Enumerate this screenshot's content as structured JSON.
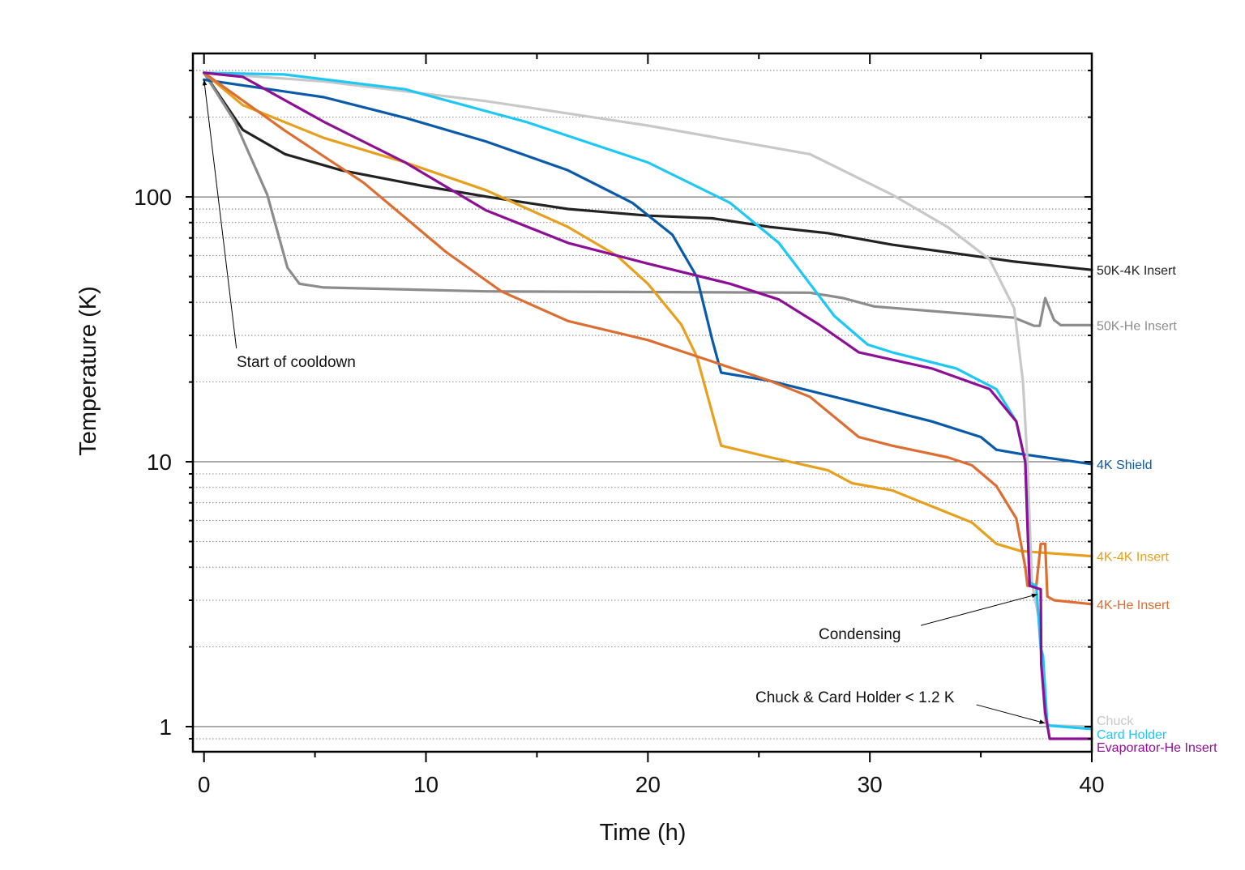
{
  "chart_data": {
    "type": "line",
    "title": "",
    "xlabel": "Time (h)",
    "ylabel": "Temperature (K)",
    "xlim": [
      -0.5,
      40
    ],
    "ylim": [
      0.804,
      348
    ],
    "yscale": "log",
    "grid": "horizontal major solid, minor dotted",
    "legend": "inline labels at right end of each line",
    "x_ticks": [
      0,
      10,
      20,
      30,
      40
    ],
    "x_tick_labels": [
      "0",
      "10",
      "20",
      "30",
      "40"
    ],
    "y_ticks": [
      1,
      10,
      100
    ],
    "y_tick_labels": [
      "1",
      "10",
      "100"
    ],
    "series": [
      {
        "name": "50K-4K Insert",
        "color": "#222222",
        "points": [
          [
            0,
            294
          ],
          [
            1.75,
            179
          ],
          [
            3.65,
            145
          ],
          [
            6.2,
            126
          ],
          [
            9.85,
            110
          ],
          [
            12.8,
            100
          ],
          [
            16.4,
            90
          ],
          [
            20,
            85
          ],
          [
            22.9,
            83
          ],
          [
            25.5,
            77
          ],
          [
            28.1,
            73
          ],
          [
            31,
            66
          ],
          [
            34.6,
            60
          ],
          [
            36.5,
            57
          ],
          [
            40,
            53
          ]
        ]
      },
      {
        "name": "50K-He Insert",
        "color": "#8c8c8c",
        "points": [
          [
            0,
            294
          ],
          [
            1.4,
            192
          ],
          [
            2.85,
            102
          ],
          [
            3.76,
            54
          ],
          [
            4.3,
            47
          ],
          [
            5.4,
            45.5
          ],
          [
            12.7,
            44
          ],
          [
            27.3,
            43.5
          ],
          [
            28.8,
            41.5
          ],
          [
            30.2,
            38.6
          ],
          [
            36.5,
            35
          ],
          [
            37.4,
            32.6
          ],
          [
            37.65,
            32.6
          ],
          [
            37.9,
            41.5
          ],
          [
            38.3,
            34.3
          ],
          [
            38.6,
            32.8
          ],
          [
            40,
            32.8
          ]
        ]
      },
      {
        "name": "4K Shield",
        "color": "#0a5aaa",
        "points": [
          [
            0,
            277
          ],
          [
            5.4,
            238
          ],
          [
            9.06,
            199
          ],
          [
            12.7,
            162
          ],
          [
            16.4,
            126
          ],
          [
            19.3,
            95
          ],
          [
            21.1,
            72
          ],
          [
            22.2,
            50
          ],
          [
            22.9,
            28.8
          ],
          [
            23.3,
            21.7
          ],
          [
            25.5,
            20.2
          ],
          [
            29.1,
            17
          ],
          [
            32.8,
            14.2
          ],
          [
            35,
            12.4
          ],
          [
            35.7,
            11.1
          ],
          [
            36.8,
            10.7
          ],
          [
            40,
            9.8
          ]
        ]
      },
      {
        "name": "4K-4K Insert",
        "color": "#e6a01e",
        "points": [
          [
            0,
            294
          ],
          [
            1.75,
            222
          ],
          [
            5.4,
            167
          ],
          [
            9.06,
            135
          ],
          [
            12.7,
            106
          ],
          [
            16.4,
            77
          ],
          [
            18.6,
            60
          ],
          [
            20,
            47
          ],
          [
            21.5,
            33
          ],
          [
            22.2,
            25
          ],
          [
            22.8,
            16.4
          ],
          [
            23.3,
            11.5
          ],
          [
            25.5,
            10.4
          ],
          [
            28.1,
            9.3
          ],
          [
            29.2,
            8.3
          ],
          [
            31,
            7.8
          ],
          [
            34.6,
            5.9
          ],
          [
            35.7,
            4.9
          ],
          [
            36.8,
            4.6
          ],
          [
            40,
            4.4
          ]
        ]
      },
      {
        "name": "4K-He Insert",
        "color": "#dc6e32",
        "points": [
          [
            0,
            294
          ],
          [
            3.6,
            179
          ],
          [
            7.2,
            113
          ],
          [
            10.9,
            62
          ],
          [
            13.4,
            44
          ],
          [
            16.4,
            34
          ],
          [
            20,
            28.8
          ],
          [
            22.2,
            25
          ],
          [
            25.5,
            20.2
          ],
          [
            27.3,
            17.6
          ],
          [
            29.5,
            12.4
          ],
          [
            31,
            11.5
          ],
          [
            33.5,
            10.4
          ],
          [
            34.6,
            9.7
          ],
          [
            35.7,
            8.1
          ],
          [
            36.6,
            6.1
          ],
          [
            37,
            4.0
          ],
          [
            37.1,
            3.4
          ],
          [
            37.5,
            3.4
          ],
          [
            37.7,
            4.9
          ],
          [
            37.9,
            4.9
          ],
          [
            38,
            3.1
          ],
          [
            38.3,
            3.0
          ],
          [
            40,
            2.9
          ]
        ]
      },
      {
        "name": "Chuck",
        "color": "#c8c8c8",
        "points": [
          [
            0,
            294
          ],
          [
            5.4,
            273
          ],
          [
            12.7,
            230
          ],
          [
            20,
            186
          ],
          [
            27.3,
            145
          ],
          [
            31,
            102
          ],
          [
            33.5,
            77
          ],
          [
            35.4,
            58
          ],
          [
            36.5,
            38
          ],
          [
            36.9,
            20
          ],
          [
            37.1,
            10
          ],
          [
            37.3,
            3.5
          ],
          [
            37.6,
            2.6
          ],
          [
            37.9,
            1.05
          ],
          [
            38.1,
            1.01
          ],
          [
            40,
            1.0
          ]
        ]
      },
      {
        "name": "Card Holder",
        "color": "#1ec8f5",
        "points": [
          [
            0,
            294
          ],
          [
            3.6,
            290
          ],
          [
            9.06,
            255
          ],
          [
            14.5,
            192
          ],
          [
            20,
            135
          ],
          [
            23.7,
            95
          ],
          [
            25.9,
            67
          ],
          [
            27.3,
            47
          ],
          [
            28.4,
            35.5
          ],
          [
            29.9,
            27.7
          ],
          [
            31,
            25.9
          ],
          [
            33.9,
            22.5
          ],
          [
            35.7,
            18.8
          ],
          [
            36.6,
            14.2
          ],
          [
            37,
            10
          ],
          [
            37.2,
            3.5
          ],
          [
            37.5,
            3.4
          ],
          [
            37.7,
            1.98
          ],
          [
            37.8,
            1.85
          ],
          [
            38,
            1.01
          ],
          [
            40,
            0.98
          ]
        ]
      },
      {
        "name": "Evaporator-He Insert",
        "color": "#8c0f96",
        "points": [
          [
            0,
            294
          ],
          [
            1.75,
            284
          ],
          [
            5.4,
            192
          ],
          [
            9.06,
            135
          ],
          [
            12.7,
            89
          ],
          [
            16.4,
            67
          ],
          [
            20,
            56
          ],
          [
            23.7,
            47
          ],
          [
            25.9,
            41
          ],
          [
            27.7,
            33
          ],
          [
            29.5,
            25.9
          ],
          [
            32.8,
            22.5
          ],
          [
            35.4,
            18.8
          ],
          [
            36.6,
            14.2
          ],
          [
            37,
            10
          ],
          [
            37.2,
            3.4
          ],
          [
            37.7,
            3.3
          ],
          [
            37.72,
            1.72
          ],
          [
            37.9,
            1.13
          ],
          [
            38.1,
            0.9
          ],
          [
            40,
            0.9
          ]
        ]
      }
    ],
    "annotations": [
      {
        "text": "Start of cooldown",
        "arrow_from": [
          1.46,
          26.8
        ],
        "arrow_to": [
          0,
          277
        ]
      },
      {
        "text": "Condensing",
        "arrow_from": [
          32.3,
          2.41
        ],
        "arrow_to": [
          37.55,
          3.16
        ]
      },
      {
        "text": "Chuck & Card Holder < 1.2 K",
        "arrow_from": [
          34.8,
          1.21
        ],
        "arrow_to": [
          37.9,
          1.03
        ]
      }
    ]
  }
}
